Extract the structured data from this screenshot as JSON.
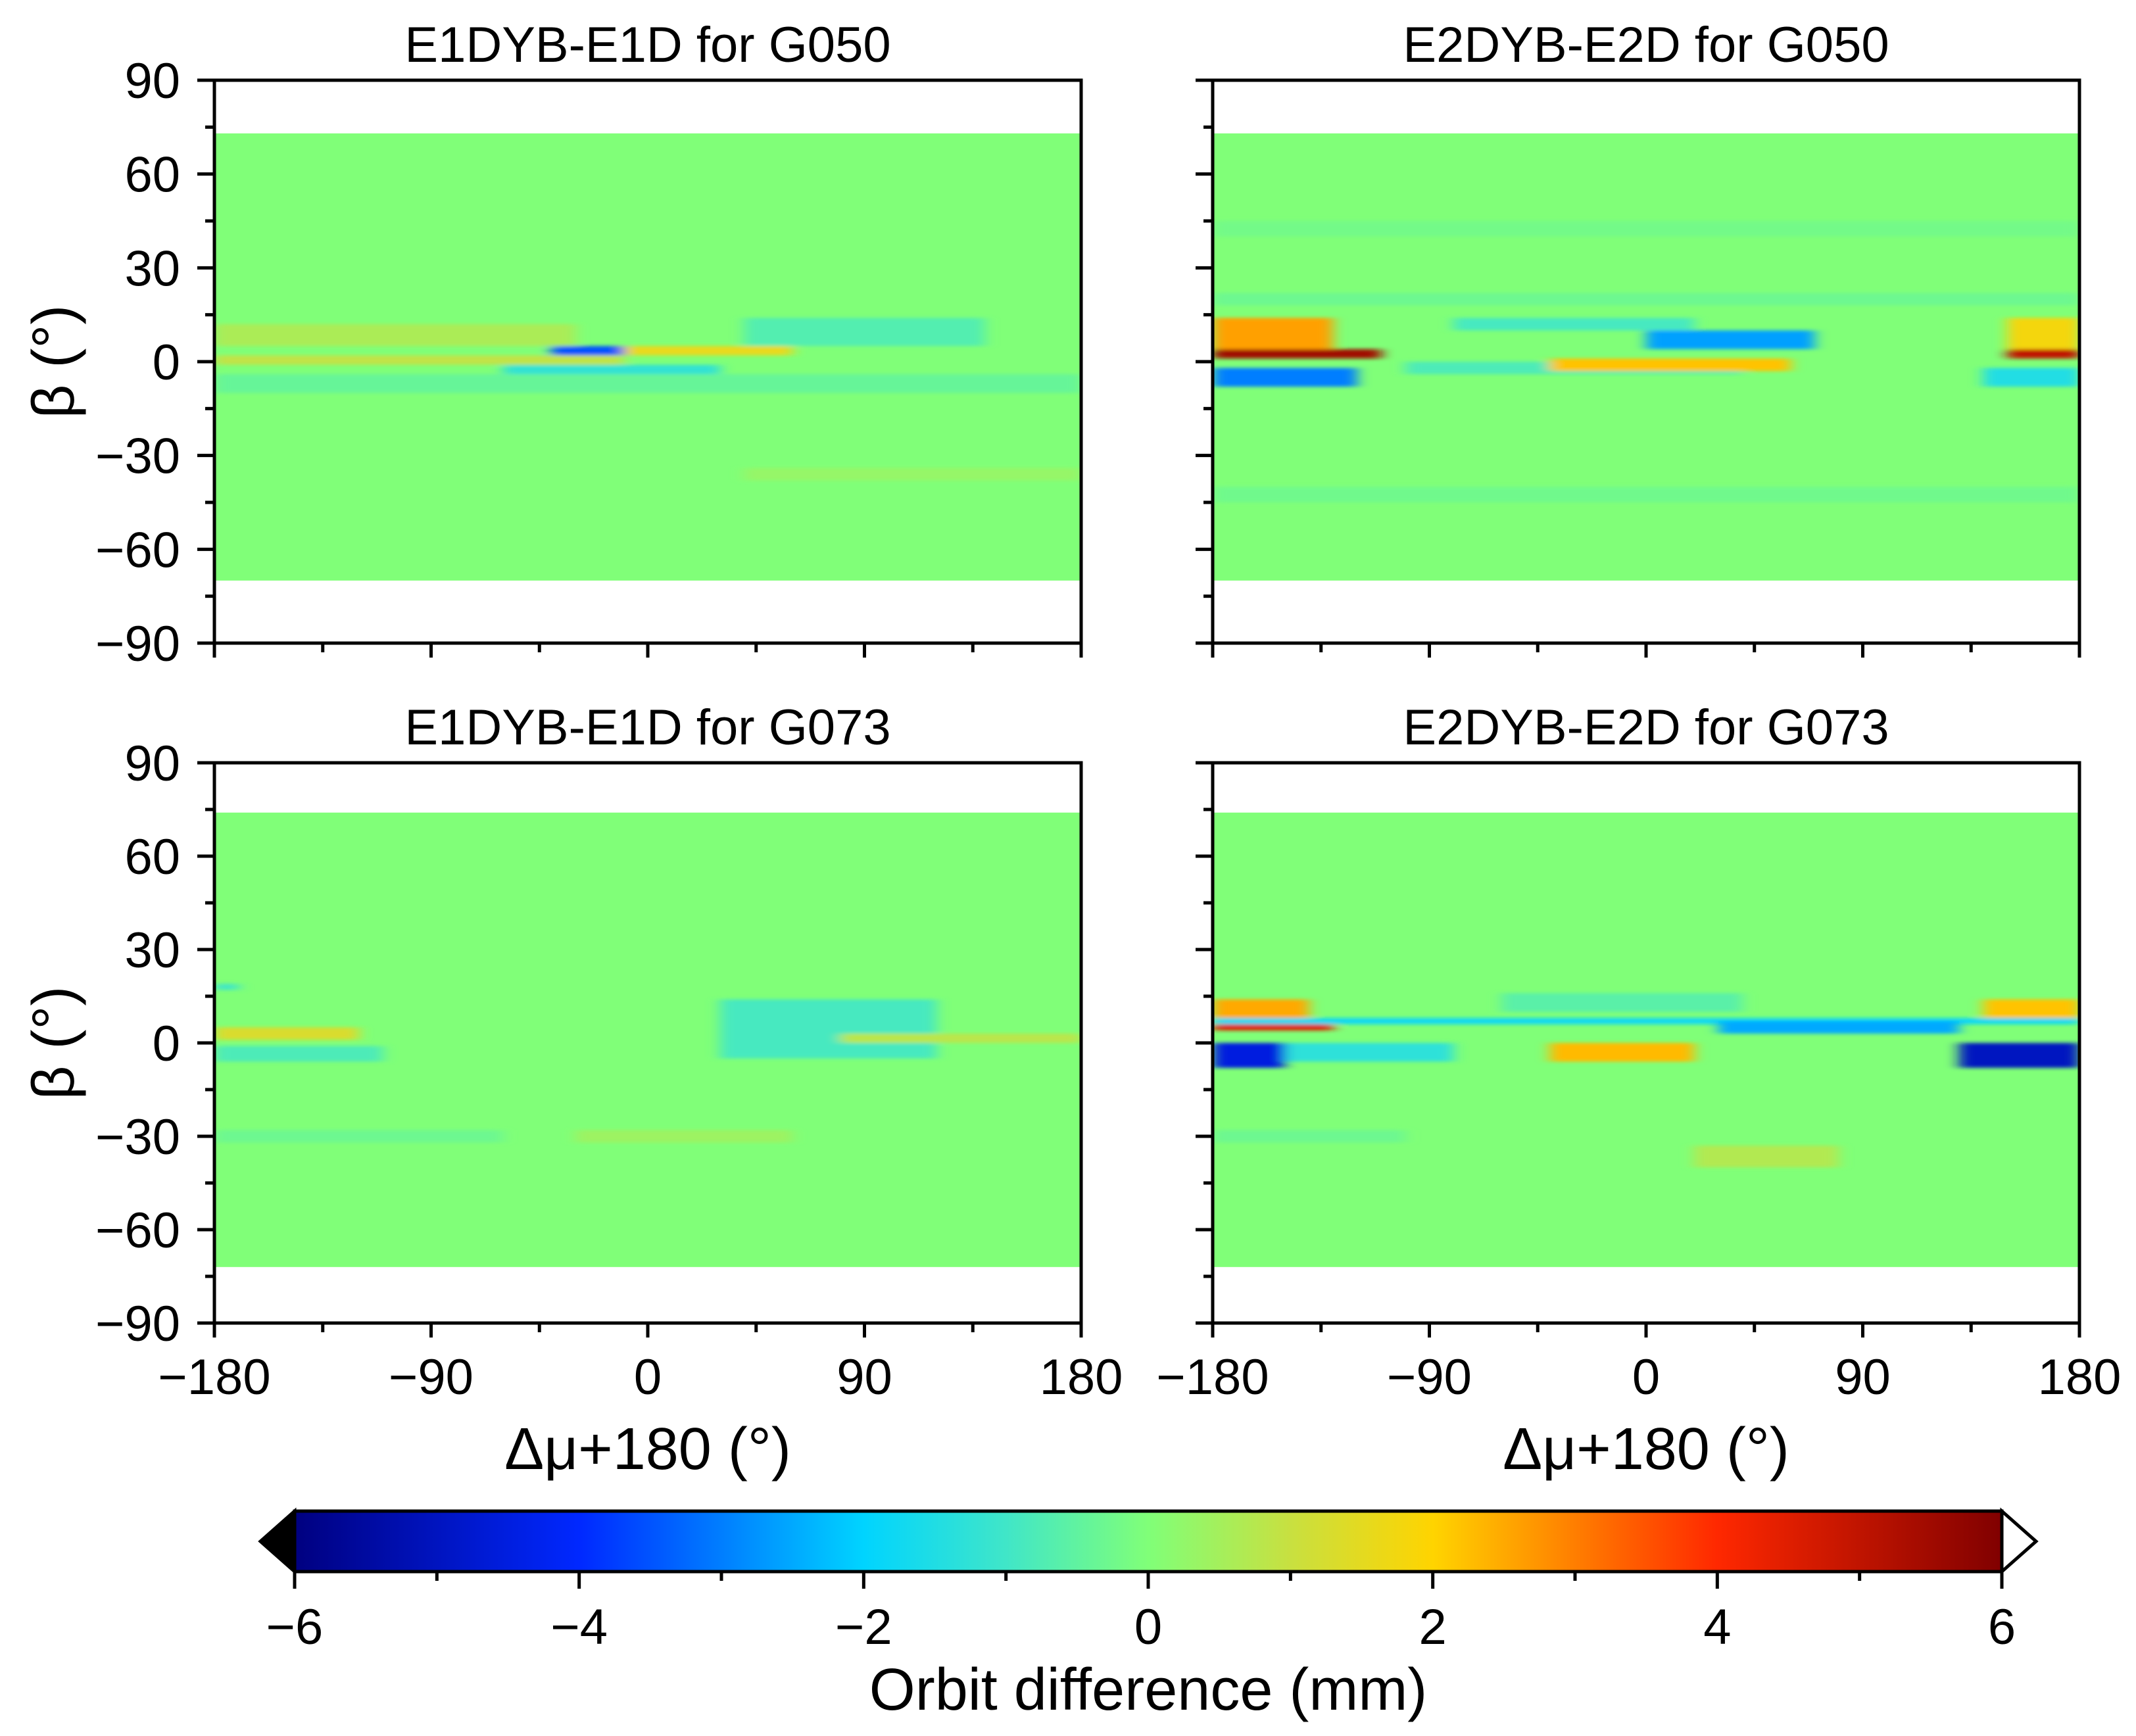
{
  "figure": {
    "shared_xlabel": "Δμ+180 (°)",
    "shared_ylabel": "β (°)",
    "colors": {
      "background": "#ffffff",
      "neutral": "#80ff78",
      "axis": "#000000"
    }
  },
  "chart_data": [
    {
      "type": "heatmap",
      "title": "E1DYB-E1D for G050",
      "xlabel": "",
      "ylabel": "β (°)",
      "xlim": [
        -180,
        180
      ],
      "ylim": [
        -90,
        90
      ],
      "data_extent_y": [
        -70,
        73
      ],
      "xticks": [
        -180,
        -90,
        0,
        90,
        180
      ],
      "xticklabels": [
        "",
        "",
        "",
        "",
        ""
      ],
      "yticks": [
        90,
        60,
        30,
        0,
        -30,
        -60,
        -90
      ],
      "yticklabels": [
        "90",
        "60",
        "30",
        "0",
        "−30",
        "−60",
        "−90"
      ],
      "bands": [
        {
          "y0": -10,
          "y1": -4,
          "x0": -180,
          "x1": 180,
          "value": -0.4
        },
        {
          "y0": -4,
          "y1": -1,
          "x0": -60,
          "x1": 30,
          "value": -1.2
        },
        {
          "y0": -1,
          "y1": 2,
          "x0": -180,
          "x1": -10,
          "value": 0.9
        },
        {
          "y0": 2,
          "y1": 5,
          "x0": -40,
          "x1": -10,
          "value": -3.5
        },
        {
          "y0": 2,
          "y1": 5,
          "x0": -10,
          "x1": 60,
          "value": 1.6
        },
        {
          "y0": 5,
          "y1": 12,
          "x0": -180,
          "x1": -30,
          "value": 0.6
        },
        {
          "y0": 5,
          "y1": 14,
          "x0": 40,
          "x1": 140,
          "value": -0.7
        },
        {
          "y0": -38,
          "y1": -34,
          "x0": 40,
          "x1": 180,
          "value": 0.3
        }
      ]
    },
    {
      "type": "heatmap",
      "title": "E2DYB-E2D for G050",
      "xlabel": "",
      "ylabel": "",
      "xlim": [
        -180,
        180
      ],
      "ylim": [
        -90,
        90
      ],
      "data_extent_y": [
        -70,
        73
      ],
      "xticks": [
        -180,
        -90,
        0,
        90,
        180
      ],
      "xticklabels": [
        "",
        "",
        "",
        "",
        ""
      ],
      "yticks": [
        90,
        60,
        30,
        0,
        -30,
        -60,
        -90
      ],
      "yticklabels": [
        "",
        "",
        "",
        "",
        "",
        "",
        ""
      ],
      "bands": [
        {
          "y0": -8,
          "y1": -2,
          "x0": -180,
          "x1": -120,
          "value": -3.0
        },
        {
          "y0": -8,
          "y1": -2,
          "x0": 140,
          "x1": 180,
          "value": -1.5
        },
        {
          "y0": -4,
          "y1": 0,
          "x0": -100,
          "x1": 40,
          "value": -0.8
        },
        {
          "y0": 1,
          "y1": 4,
          "x0": -180,
          "x1": -110,
          "value": 5.5
        },
        {
          "y0": 1,
          "y1": 4,
          "x0": 150,
          "x1": 180,
          "value": 5.0
        },
        {
          "y0": -3,
          "y1": 1,
          "x0": -40,
          "x1": 60,
          "value": 2.2
        },
        {
          "y0": 4,
          "y1": 14,
          "x0": -180,
          "x1": -130,
          "value": 2.6
        },
        {
          "y0": 4,
          "y1": 14,
          "x0": 150,
          "x1": 180,
          "value": 1.8
        },
        {
          "y0": 4,
          "y1": 10,
          "x0": 0,
          "x1": 70,
          "value": -2.6
        },
        {
          "y0": 10,
          "y1": 14,
          "x0": -80,
          "x1": 20,
          "value": -0.9
        },
        {
          "y0": 18,
          "y1": 22,
          "x0": -180,
          "x1": 180,
          "value": -0.3
        },
        {
          "y0": 40,
          "y1": 45,
          "x0": -180,
          "x1": 180,
          "value": -0.2
        },
        {
          "y0": -45,
          "y1": -40,
          "x0": -180,
          "x1": 180,
          "value": -0.25
        }
      ]
    },
    {
      "type": "heatmap",
      "title": "E1DYB-E1D for G073",
      "xlabel": "Δμ+180 (°)",
      "ylabel": "β (°)",
      "xlim": [
        -180,
        180
      ],
      "ylim": [
        -90,
        90
      ],
      "data_extent_y": [
        -72,
        74
      ],
      "xticks": [
        -180,
        -90,
        0,
        90,
        180
      ],
      "xticklabels": [
        "−180",
        "−90",
        "0",
        "90",
        "180"
      ],
      "yticks": [
        90,
        60,
        30,
        0,
        -30,
        -60,
        -90
      ],
      "yticklabels": [
        "90",
        "60",
        "30",
        "0",
        "−30",
        "−60",
        "−90"
      ],
      "bands": [
        {
          "y0": -6,
          "y1": -1,
          "x0": -180,
          "x1": -110,
          "value": -0.8
        },
        {
          "y0": 1,
          "y1": 5,
          "x0": -180,
          "x1": -120,
          "value": 1.3
        },
        {
          "y0": -5,
          "y1": 14,
          "x0": 30,
          "x1": 120,
          "value": -0.9
        },
        {
          "y0": 0,
          "y1": 3,
          "x0": 80,
          "x1": 180,
          "value": 0.8
        },
        {
          "y0": 17,
          "y1": 19,
          "x0": -180,
          "x1": -170,
          "value": -1.0
        },
        {
          "y0": -32,
          "y1": -28,
          "x0": -180,
          "x1": -60,
          "value": -0.3
        },
        {
          "y0": -32,
          "y1": -28,
          "x0": -30,
          "x1": 60,
          "value": 0.4
        }
      ]
    },
    {
      "type": "heatmap",
      "title": "E2DYB-E2D for G073",
      "xlabel": "Δμ+180 (°)",
      "ylabel": "",
      "xlim": [
        -180,
        180
      ],
      "ylim": [
        -90,
        90
      ],
      "data_extent_y": [
        -72,
        74
      ],
      "xticks": [
        -180,
        -90,
        0,
        90,
        180
      ],
      "xticklabels": [
        "−180",
        "−90",
        "0",
        "90",
        "180"
      ],
      "yticks": [
        90,
        60,
        30,
        0,
        -30,
        -60,
        -90
      ],
      "yticklabels": [
        "",
        "",
        "",
        "",
        "",
        "",
        ""
      ],
      "bands": [
        {
          "y0": -8,
          "y1": 0,
          "x0": -180,
          "x1": -150,
          "value": -4.5
        },
        {
          "y0": -8,
          "y1": 0,
          "x0": 130,
          "x1": 180,
          "value": -5.0
        },
        {
          "y0": -6,
          "y1": 0,
          "x0": -150,
          "x1": -80,
          "value": -1.3
        },
        {
          "y0": 4,
          "y1": 6,
          "x0": -180,
          "x1": -130,
          "value": 4.5
        },
        {
          "y0": 6,
          "y1": 8,
          "x0": -180,
          "x1": 180,
          "value": -1.8
        },
        {
          "y0": 8,
          "y1": 14,
          "x0": -180,
          "x1": -140,
          "value": 2.5
        },
        {
          "y0": 8,
          "y1": 14,
          "x0": 140,
          "x1": 180,
          "value": 2.2
        },
        {
          "y0": -6,
          "y1": 0,
          "x0": -40,
          "x1": 20,
          "value": 2.3
        },
        {
          "y0": 3,
          "y1": 7,
          "x0": 30,
          "x1": 130,
          "value": -2.5
        },
        {
          "y0": 10,
          "y1": 16,
          "x0": -60,
          "x1": 40,
          "value": -0.6
        },
        {
          "y0": -40,
          "y1": -33,
          "x0": 20,
          "x1": 80,
          "value": 0.7
        },
        {
          "y0": -32,
          "y1": -28,
          "x0": -180,
          "x1": -100,
          "value": -0.3
        }
      ]
    }
  ],
  "colorbar": {
    "label": "Orbit difference (mm)",
    "vmin": -6,
    "vmax": 6,
    "ticks": [
      -6,
      -4,
      -2,
      0,
      2,
      4,
      6
    ],
    "ticklabels": [
      "−6",
      "−4",
      "−2",
      "0",
      "2",
      "4",
      "6"
    ],
    "extend_low_color": "#000000",
    "extend_high_color": "#ffffff",
    "stops": [
      {
        "value": -6,
        "color": "#000080"
      },
      {
        "value": -4,
        "color": "#0028ff"
      },
      {
        "value": -2,
        "color": "#00d4ff"
      },
      {
        "value": -1,
        "color": "#40e6c8"
      },
      {
        "value": 0,
        "color": "#80ff78"
      },
      {
        "value": 1,
        "color": "#c8e040"
      },
      {
        "value": 2,
        "color": "#ffd400"
      },
      {
        "value": 4,
        "color": "#ff2800"
      },
      {
        "value": 6,
        "color": "#800000"
      }
    ]
  }
}
